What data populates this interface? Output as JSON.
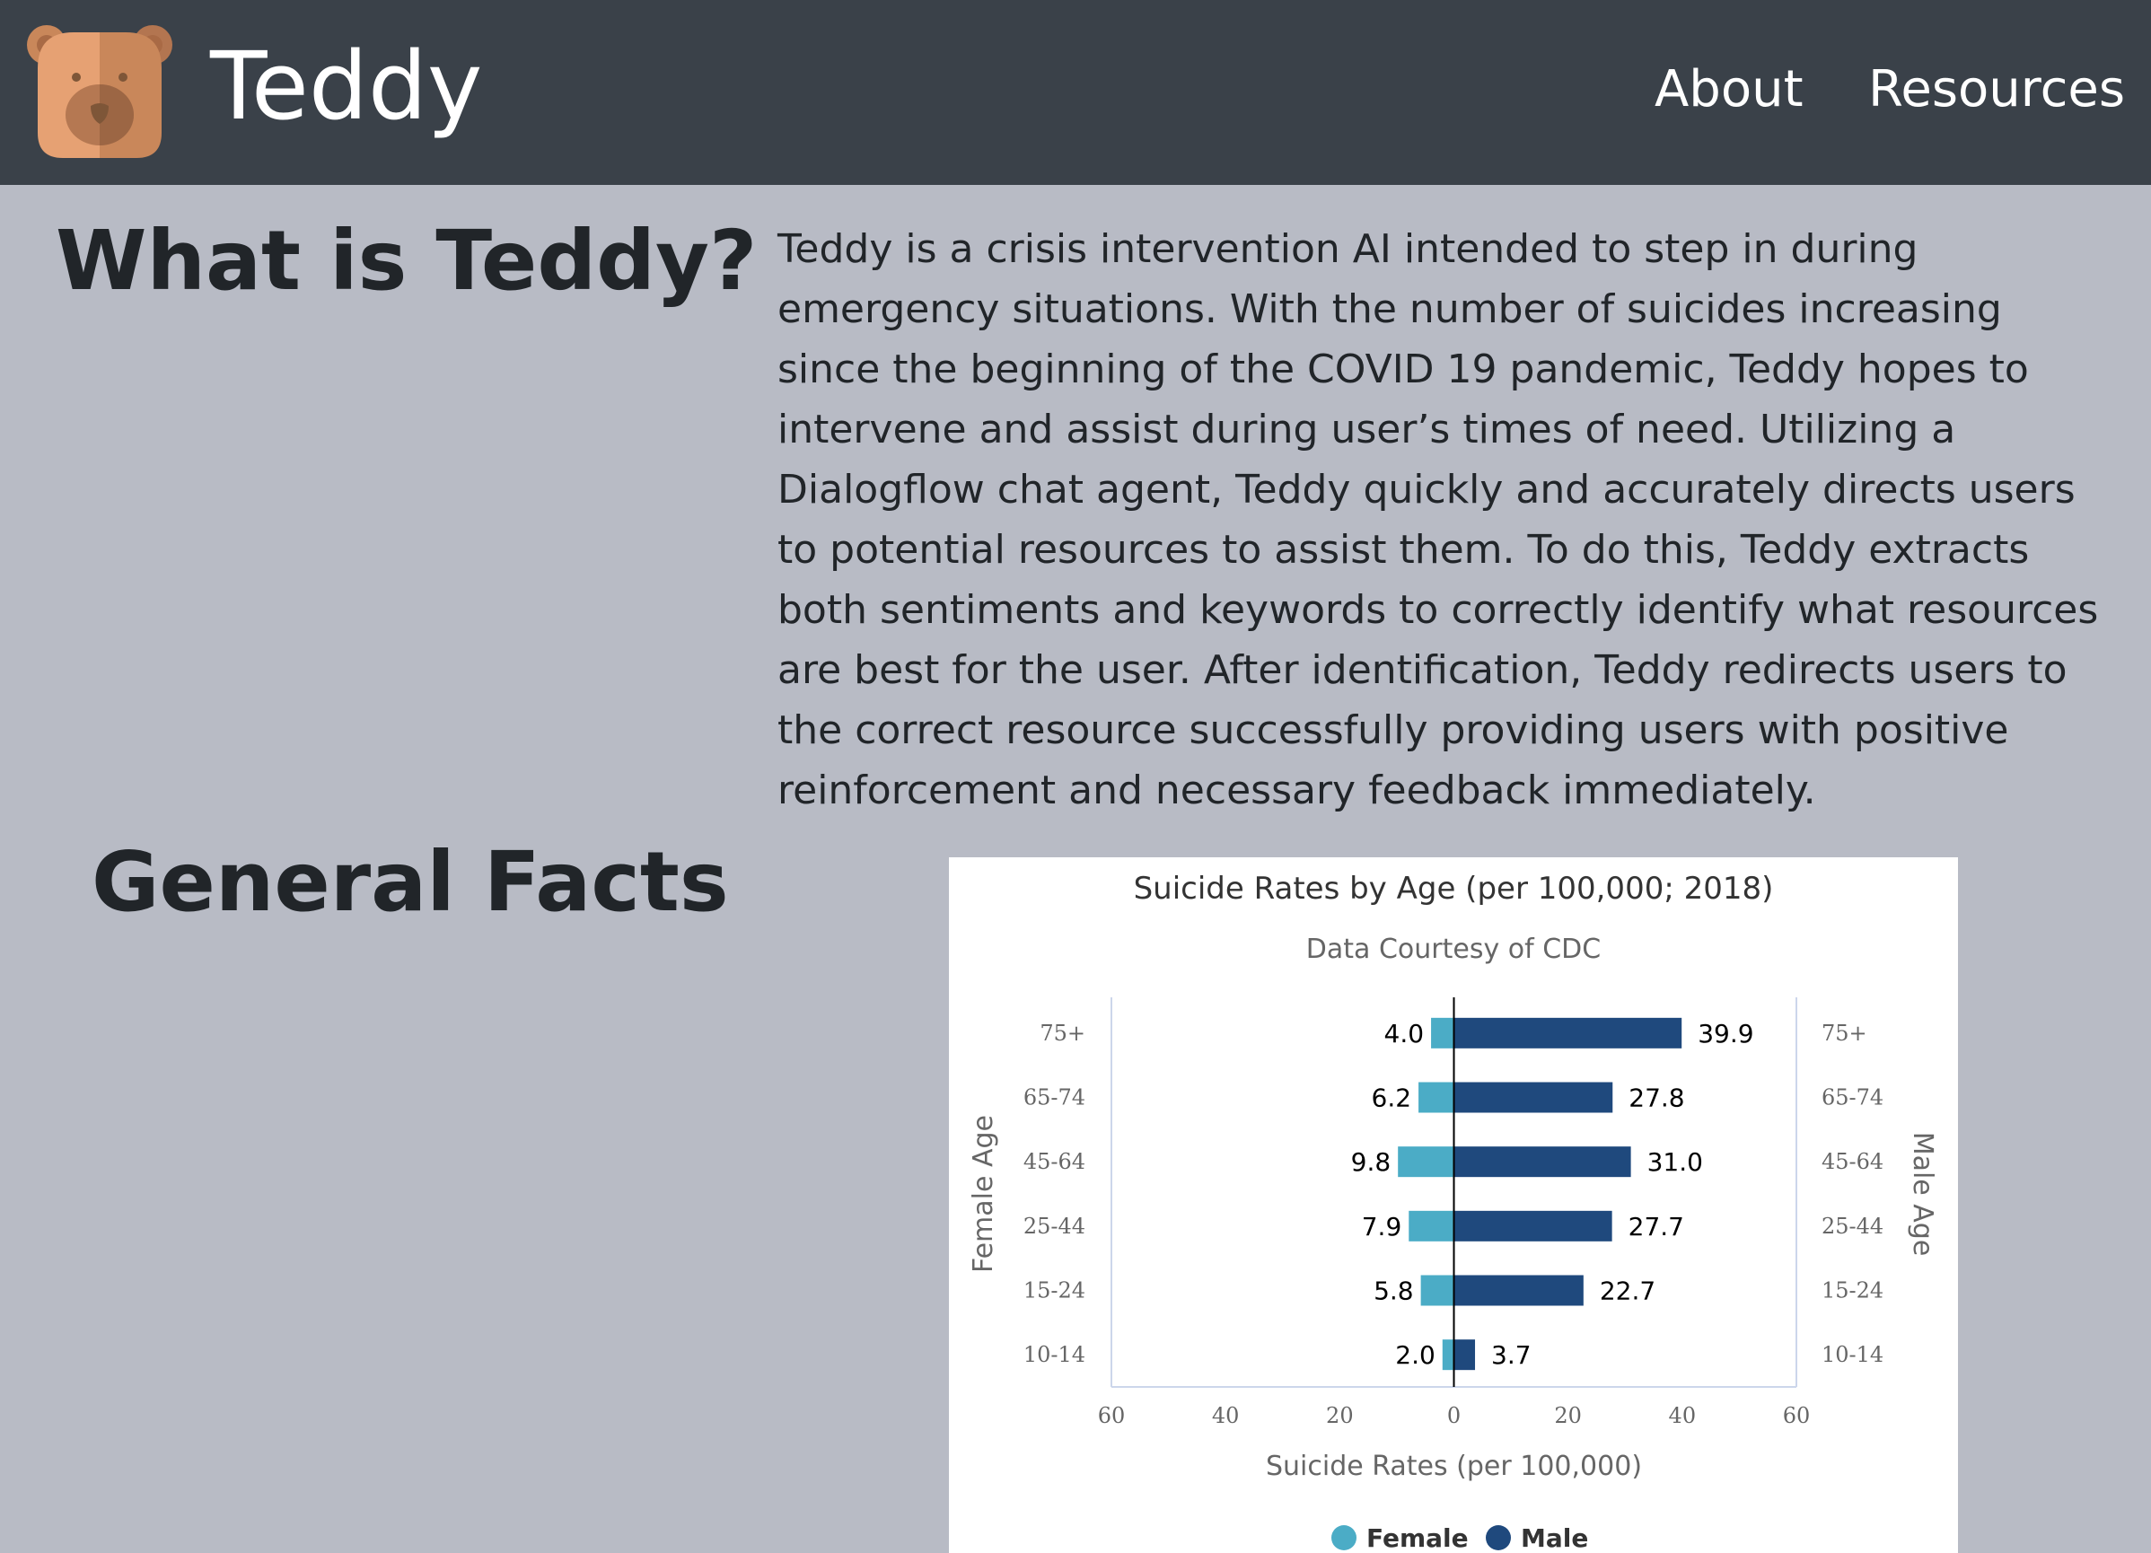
{
  "navbar": {
    "brand": "Teddy",
    "logo_icon": "teddy-bear-icon",
    "links": [
      {
        "label": "About"
      },
      {
        "label": "Resources"
      }
    ],
    "background_color": "#3a4149"
  },
  "about": {
    "heading": "What is Teddy?",
    "body": "Teddy is a crisis intervention AI intended to step in during emergency situations. With the number of suicides increasing since the beginning of the COVID 19 pandemic, Teddy hopes to intervene and assist during user’s times of need. Utilizing a Dialogflow chat agent, Teddy quickly and accurately directs users to potential resources to assist them. To do this, Teddy extracts both sentiments and keywords to correctly identify what resources are best for the user. After identification, Teddy redirects users to the correct resource successfully providing users with positive reinforcement and necessary feedback immediately."
  },
  "facts": {
    "heading": "General Facts"
  },
  "chart_data": {
    "type": "bar",
    "orientation": "horizontal-population-pyramid",
    "title": "Suicide Rates by Age (per 100,000; 2018)",
    "subtitle": "Data Courtesy of CDC",
    "categories": [
      "75+",
      "65-74",
      "45-64",
      "25-44",
      "15-24",
      "10-14"
    ],
    "series": [
      {
        "name": "Female",
        "color": "#4bacc6",
        "values": [
          4.0,
          6.2,
          9.8,
          7.9,
          5.8,
          2.0
        ]
      },
      {
        "name": "Male",
        "color": "#1f497d",
        "values": [
          39.9,
          27.8,
          31.0,
          27.7,
          22.7,
          3.7
        ]
      }
    ],
    "xlabel": "Suicide Rates (per 100,000)",
    "ylabel_left": "Female Age",
    "ylabel_right": "Male Age",
    "xlim": [
      -60,
      60
    ],
    "xticks": [
      "60",
      "40",
      "20",
      "0",
      "20",
      "40",
      "60"
    ],
    "legend_position": "bottom",
    "grid": false
  }
}
